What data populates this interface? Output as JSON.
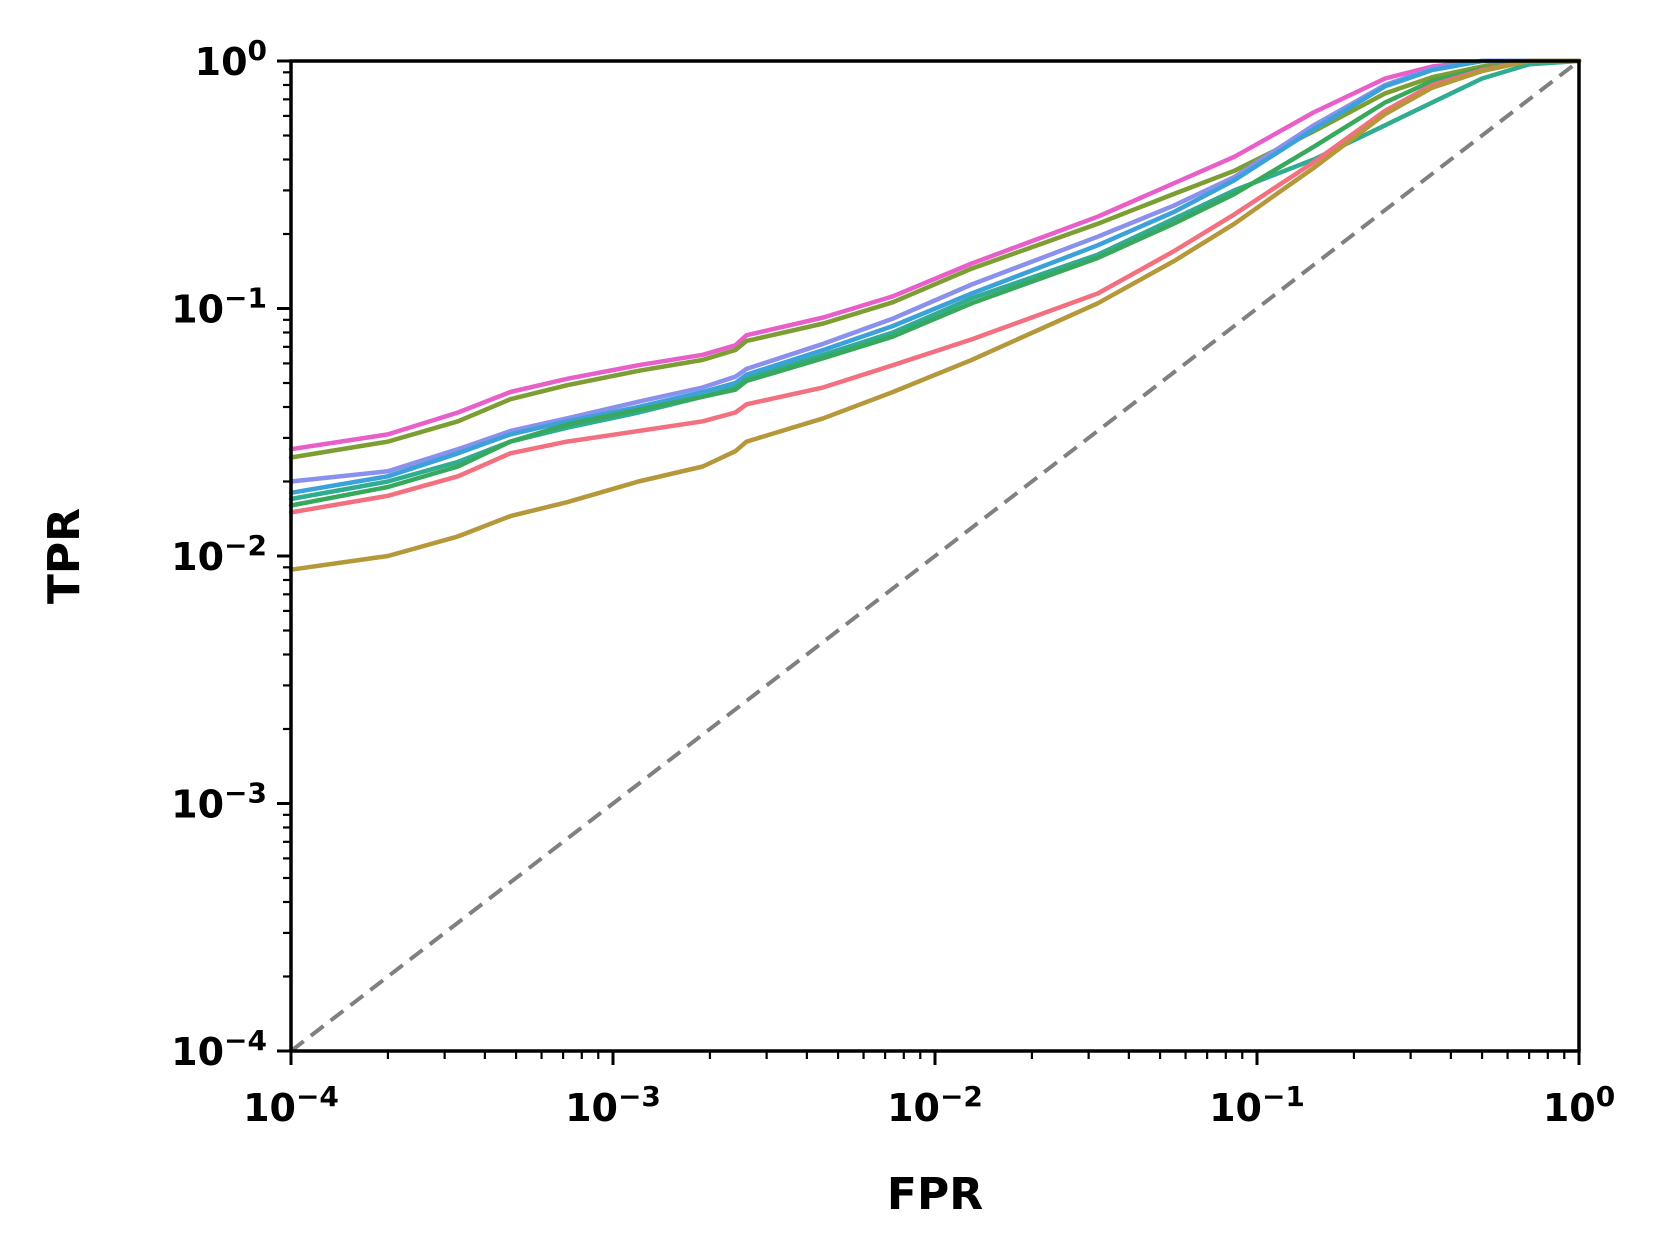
{
  "chart_data": {
    "type": "line",
    "title": "",
    "xlabel": "FPR",
    "ylabel": "TPR",
    "xscale": "log",
    "yscale": "log",
    "xlim": [
      0.0001,
      1
    ],
    "ylim": [
      0.0001,
      1
    ],
    "x_ticks": [
      {
        "value": 0.0001,
        "base": "10",
        "exp": "−4"
      },
      {
        "value": 0.001,
        "base": "10",
        "exp": "−3"
      },
      {
        "value": 0.01,
        "base": "10",
        "exp": "−2"
      },
      {
        "value": 0.1,
        "base": "10",
        "exp": "−1"
      },
      {
        "value": 1,
        "base": "10",
        "exp": "0"
      }
    ],
    "y_ticks": [
      {
        "value": 0.0001,
        "base": "10",
        "exp": "−4"
      },
      {
        "value": 0.001,
        "base": "10",
        "exp": "−3"
      },
      {
        "value": 0.01,
        "base": "10",
        "exp": "−2"
      },
      {
        "value": 0.1,
        "base": "10",
        "exp": "−1"
      },
      {
        "value": 1,
        "base": "10",
        "exp": "0"
      }
    ],
    "x": [
      0.0001,
      0.0002,
      0.00033,
      0.00048,
      0.00072,
      0.0012,
      0.0019,
      0.0024,
      0.0026,
      0.0045,
      0.0074,
      0.013,
      0.032,
      0.055,
      0.085,
      0.15,
      0.25,
      0.35,
      0.5,
      0.7,
      1.0
    ],
    "series": [
      {
        "name": "pink",
        "color": "#e85fc9",
        "values": [
          0.027,
          0.031,
          0.038,
          0.046,
          0.052,
          0.059,
          0.065,
          0.071,
          0.078,
          0.092,
          0.112,
          0.152,
          0.235,
          0.32,
          0.41,
          0.62,
          0.85,
          0.95,
          1.0,
          1.0,
          1.0
        ]
      },
      {
        "name": "olive-green",
        "color": "#7c9e33",
        "values": [
          0.025,
          0.029,
          0.035,
          0.043,
          0.049,
          0.056,
          0.062,
          0.068,
          0.074,
          0.087,
          0.106,
          0.145,
          0.22,
          0.29,
          0.36,
          0.52,
          0.74,
          0.86,
          0.95,
          1.0,
          1.0
        ]
      },
      {
        "name": "lavender-blue",
        "color": "#8a91ec",
        "values": [
          0.02,
          0.022,
          0.027,
          0.032,
          0.036,
          0.042,
          0.048,
          0.053,
          0.057,
          0.072,
          0.091,
          0.125,
          0.195,
          0.26,
          0.34,
          0.55,
          0.8,
          0.93,
          1.0,
          1.0,
          1.0
        ]
      },
      {
        "name": "sky-blue",
        "color": "#3aa2d9",
        "values": [
          0.018,
          0.021,
          0.026,
          0.031,
          0.035,
          0.04,
          0.046,
          0.05,
          0.054,
          0.068,
          0.085,
          0.115,
          0.18,
          0.245,
          0.33,
          0.53,
          0.79,
          0.92,
          1.0,
          1.0,
          1.0
        ]
      },
      {
        "name": "teal",
        "color": "#30ac91",
        "values": [
          0.017,
          0.02,
          0.024,
          0.029,
          0.033,
          0.038,
          0.044,
          0.048,
          0.052,
          0.065,
          0.08,
          0.11,
          0.165,
          0.23,
          0.3,
          0.4,
          0.55,
          0.68,
          0.85,
          0.97,
          1.0
        ]
      },
      {
        "name": "green",
        "color": "#38a85c",
        "values": [
          0.016,
          0.019,
          0.023,
          0.029,
          0.034,
          0.039,
          0.044,
          0.047,
          0.051,
          0.063,
          0.077,
          0.105,
          0.16,
          0.22,
          0.29,
          0.45,
          0.68,
          0.83,
          0.93,
          1.0,
          1.0
        ]
      },
      {
        "name": "salmon-red",
        "color": "#f2707f",
        "values": [
          0.015,
          0.0175,
          0.021,
          0.026,
          0.029,
          0.032,
          0.035,
          0.038,
          0.041,
          0.048,
          0.059,
          0.075,
          0.115,
          0.17,
          0.24,
          0.39,
          0.63,
          0.8,
          0.92,
          1.0,
          1.0
        ]
      },
      {
        "name": "mustard",
        "color": "#b4983a",
        "values": [
          0.0088,
          0.01,
          0.012,
          0.0145,
          0.0165,
          0.02,
          0.023,
          0.0265,
          0.029,
          0.036,
          0.046,
          0.062,
          0.105,
          0.155,
          0.22,
          0.37,
          0.61,
          0.78,
          0.91,
          1.0,
          1.0
        ]
      }
    ],
    "reference_line": {
      "name": "chance",
      "color": "#808080",
      "style": "dashed",
      "x": [
        0.0001,
        1
      ],
      "y": [
        0.0001,
        1
      ]
    },
    "grid": false,
    "legend": "none"
  }
}
